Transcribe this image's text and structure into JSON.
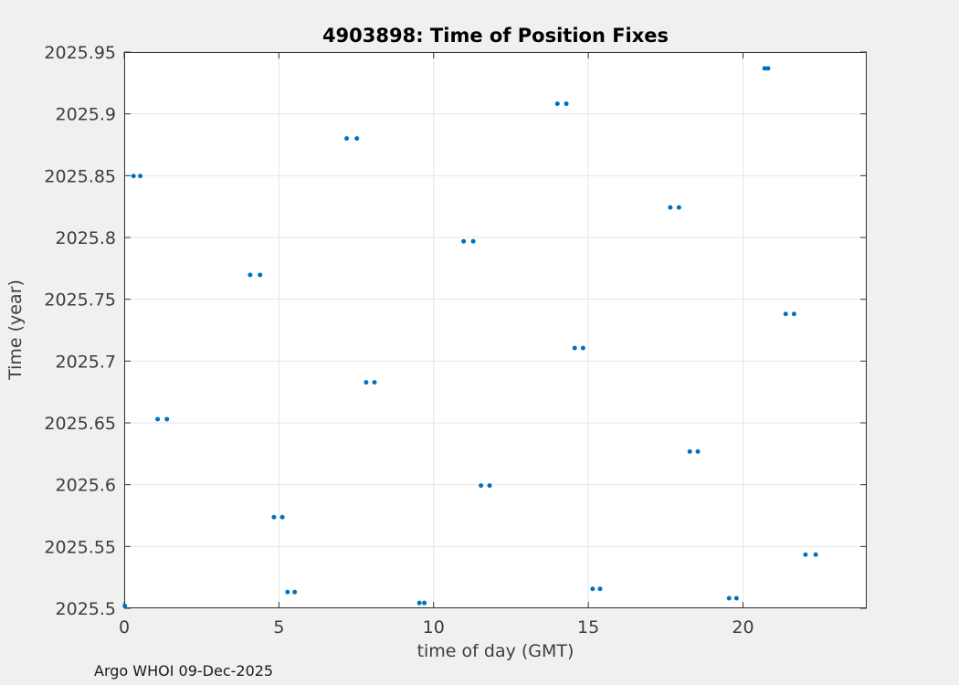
{
  "figure": {
    "title": "4903898: Time of Position Fixes",
    "footer": "Argo WHOI 09-Dec-2025"
  },
  "chart_data": {
    "type": "scatter",
    "title": "4903898: Time of Position Fixes",
    "xlabel": "time of day (GMT)",
    "ylabel": "Time (year)",
    "xlim": [
      0,
      24
    ],
    "ylim": [
      2025.5,
      2025.95
    ],
    "grid": true,
    "legend": "none",
    "marker_color": "#0072BD",
    "axis_color": "#333333",
    "grid_color": "#e6e6e6",
    "plot_bg": "#ffffff",
    "xtick_values": [
      0,
      5,
      10,
      15,
      20
    ],
    "xtick_labels": [
      "0",
      "5",
      "10",
      "15",
      "20"
    ],
    "ytick_values": [
      2025.5,
      2025.55,
      2025.6,
      2025.65,
      2025.7,
      2025.75,
      2025.8,
      2025.85,
      2025.9,
      2025.95
    ],
    "ytick_labels": [
      "2025.5",
      "2025.55",
      "2025.6",
      "2025.65",
      "2025.7",
      "2025.75",
      "2025.8",
      "2025.85",
      "2025.9",
      "2025.95"
    ],
    "points": [
      [
        0.02,
        2025.502
      ],
      [
        0.3,
        2025.8497
      ],
      [
        0.52,
        2025.8497
      ],
      [
        1.08,
        2025.653
      ],
      [
        1.38,
        2025.653
      ],
      [
        4.07,
        2025.7697
      ],
      [
        4.39,
        2025.7697
      ],
      [
        4.84,
        2025.5737
      ],
      [
        5.11,
        2025.5737
      ],
      [
        5.28,
        2025.5131
      ],
      [
        5.51,
        2025.5131
      ],
      [
        7.19,
        2025.8801
      ],
      [
        7.52,
        2025.8801
      ],
      [
        7.82,
        2025.6828
      ],
      [
        8.09,
        2025.6828
      ],
      [
        9.54,
        2025.5043
      ],
      [
        9.7,
        2025.5043
      ],
      [
        10.97,
        2025.7969
      ],
      [
        11.28,
        2025.7969
      ],
      [
        11.53,
        2025.5993
      ],
      [
        11.81,
        2025.5993
      ],
      [
        14.0,
        2025.9082
      ],
      [
        14.29,
        2025.9082
      ],
      [
        14.56,
        2025.7106
      ],
      [
        14.83,
        2025.7106
      ],
      [
        15.14,
        2025.5157
      ],
      [
        15.38,
        2025.5157
      ],
      [
        17.65,
        2025.8243
      ],
      [
        17.93,
        2025.8243
      ],
      [
        18.28,
        2025.6268
      ],
      [
        18.54,
        2025.6268
      ],
      [
        19.55,
        2025.5081
      ],
      [
        19.79,
        2025.5081
      ],
      [
        20.7,
        2025.9368
      ],
      [
        20.81,
        2025.9368
      ],
      [
        21.38,
        2025.7381
      ],
      [
        21.65,
        2025.7381
      ],
      [
        22.02,
        2025.5434
      ],
      [
        22.35,
        2025.5434
      ]
    ]
  }
}
